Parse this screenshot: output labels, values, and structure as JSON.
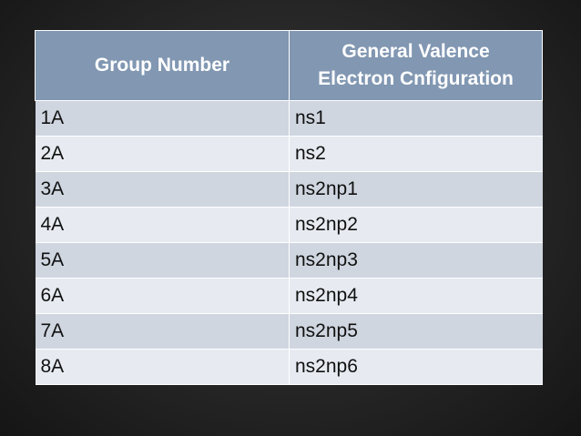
{
  "table": {
    "headers": {
      "group": "Group Number",
      "config_line1": "General Valence",
      "config_line2": "Electron Cnfiguration"
    },
    "rows": [
      {
        "group": "1A",
        "config": "ns1"
      },
      {
        "group": "2A",
        "config": "ns2"
      },
      {
        "group": "3A",
        "config": "ns2np1"
      },
      {
        "group": "4A",
        "config": "ns2np2"
      },
      {
        "group": "5A",
        "config": "ns2np3"
      },
      {
        "group": "6A",
        "config": "ns2np4"
      },
      {
        "group": "7A",
        "config": "ns2np5"
      },
      {
        "group": "8A",
        "config": "ns2np6"
      }
    ]
  },
  "colors": {
    "background": "#262626",
    "header_fill": "#8197b2",
    "row_band_dark": "#cfd6e0",
    "row_band_light": "#e7ebf1"
  }
}
